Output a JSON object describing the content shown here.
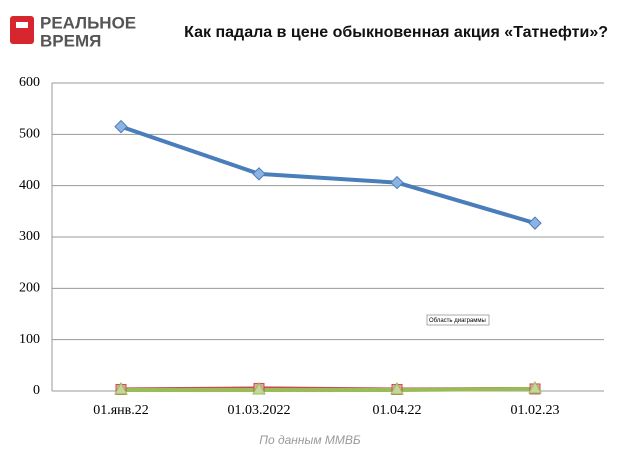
{
  "header": {
    "logo_top": "РЕАЛЬНОЕ",
    "logo_bottom": "ВРЕМЯ"
  },
  "chart_data": {
    "type": "line",
    "title": "Как падала в цене обыкновенная акция «Татнефти»?",
    "source": "По данным ММВБ",
    "annotation": "Область диаграммы",
    "categories": [
      "01.янв.22",
      "01.03.2022",
      "01.04.22",
      "01.02.23"
    ],
    "series": [
      {
        "color": "#4a7ebb",
        "marker": "diamond",
        "values": [
          515,
          423,
          406,
          327
        ]
      },
      {
        "color": "#c0504d",
        "marker": "square",
        "values": [
          3,
          5,
          3,
          4
        ]
      },
      {
        "color": "#9bbb59",
        "marker": "triangle",
        "values": [
          2,
          2,
          2,
          4
        ]
      }
    ],
    "ylim": [
      0,
      600
    ],
    "yticks": [
      0,
      100,
      200,
      300,
      400,
      500,
      600
    ],
    "grid": true
  }
}
